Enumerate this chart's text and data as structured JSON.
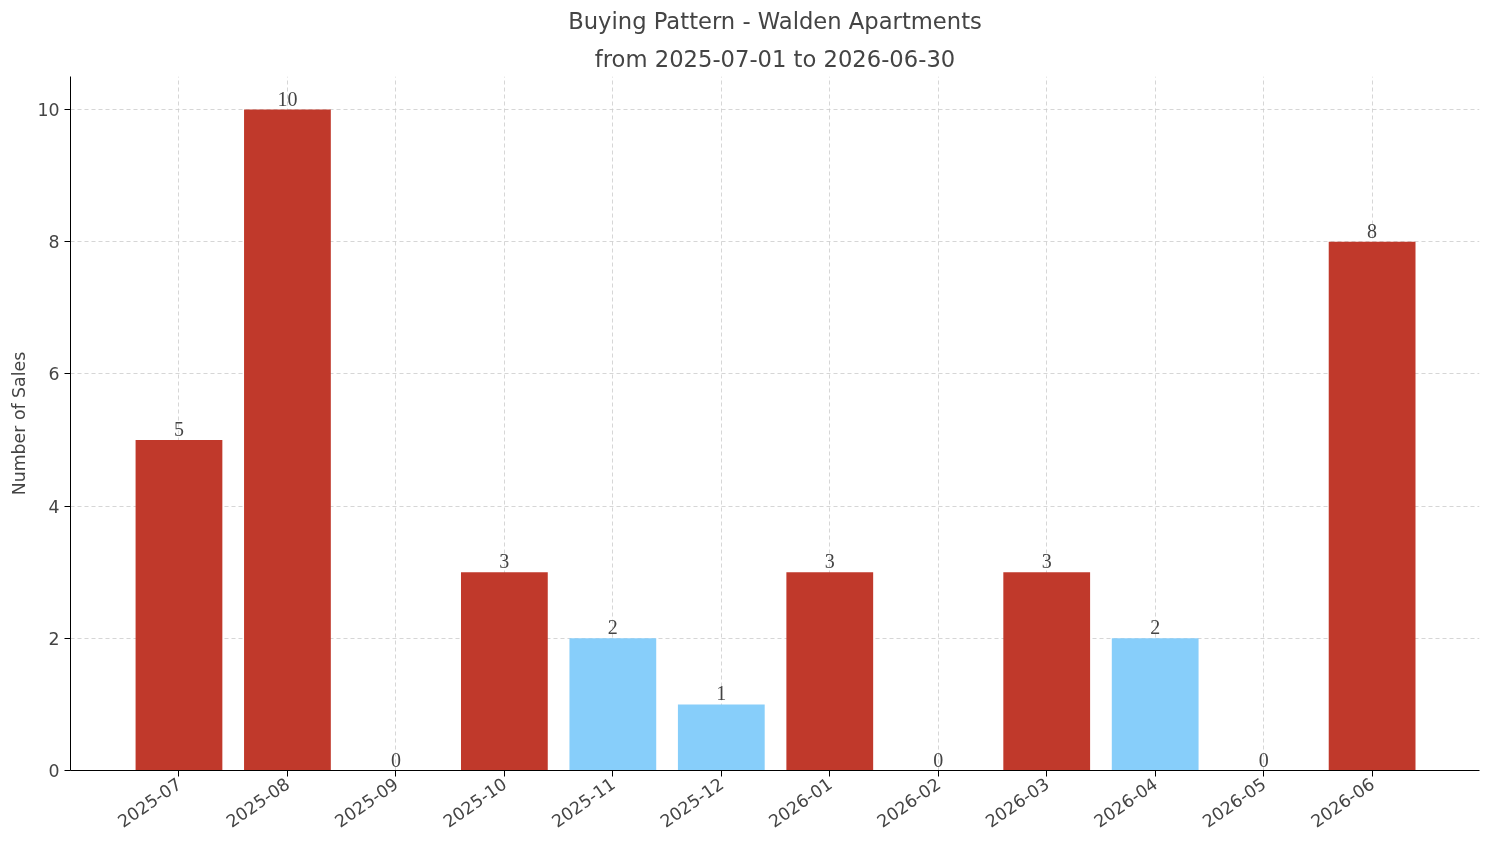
{
  "chart_data": {
    "type": "bar",
    "title": "Buying Pattern - Walden Apartments",
    "subtitle": "from 2025-07-01 to 2026-06-30",
    "ylabel": "Number of Sales",
    "categories": [
      "2025-07",
      "2025-08",
      "2025-09",
      "2025-10",
      "2025-11",
      "2025-12",
      "2026-01",
      "2026-02",
      "2026-03",
      "2026-04",
      "2026-05",
      "2026-06"
    ],
    "values": [
      5,
      10,
      0,
      3,
      2,
      1,
      3,
      0,
      3,
      2,
      0,
      8
    ],
    "colors": [
      "#c0392b",
      "#c0392b",
      "#c0392b",
      "#c0392b",
      "#87cefa",
      "#87cefa",
      "#c0392b",
      "#c0392b",
      "#c0392b",
      "#87cefa",
      "#c0392b",
      "#c0392b"
    ],
    "ylim": [
      0,
      10.5
    ],
    "yticks": [
      0,
      2,
      4,
      6,
      8,
      10
    ],
    "grid": true,
    "data_labels": true
  }
}
